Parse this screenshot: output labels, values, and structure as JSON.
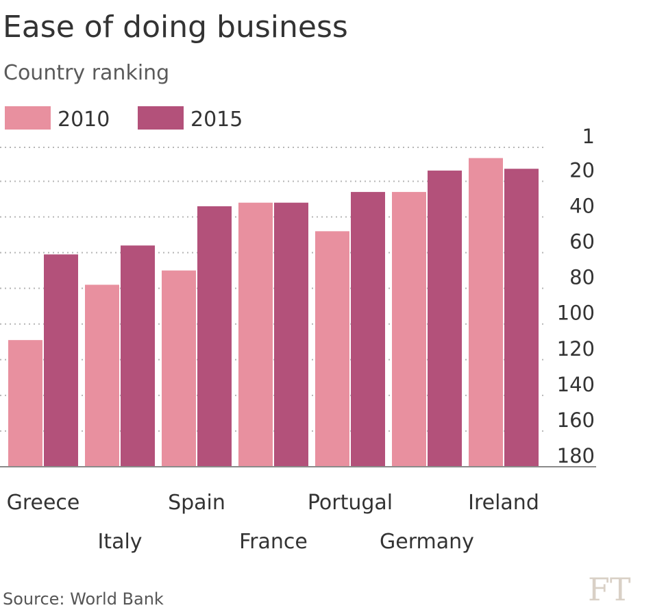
{
  "chart_data": {
    "type": "bar",
    "title": "Ease of doing business",
    "subtitle": "Country ranking",
    "source": "Source: World Bank",
    "logo": "FT",
    "categories": [
      "Greece",
      "Italy",
      "Spain",
      "France",
      "Portugal",
      "Germany",
      "Ireland"
    ],
    "series": [
      {
        "name": "2010",
        "color": "#e8909f",
        "values": [
          109,
          78,
          70,
          32,
          48,
          26,
          7
        ]
      },
      {
        "name": "2015",
        "color": "#b3517a",
        "values": [
          61,
          56,
          34,
          32,
          26,
          14,
          13
        ]
      }
    ],
    "y_axis": {
      "inverted": true,
      "range": [
        1,
        180
      ],
      "ticks": [
        1,
        20,
        40,
        60,
        80,
        100,
        120,
        140,
        160,
        180
      ],
      "side": "right",
      "grid": "dotted"
    },
    "xlabel": "",
    "ylabel": "",
    "legend_position": "top-left"
  }
}
